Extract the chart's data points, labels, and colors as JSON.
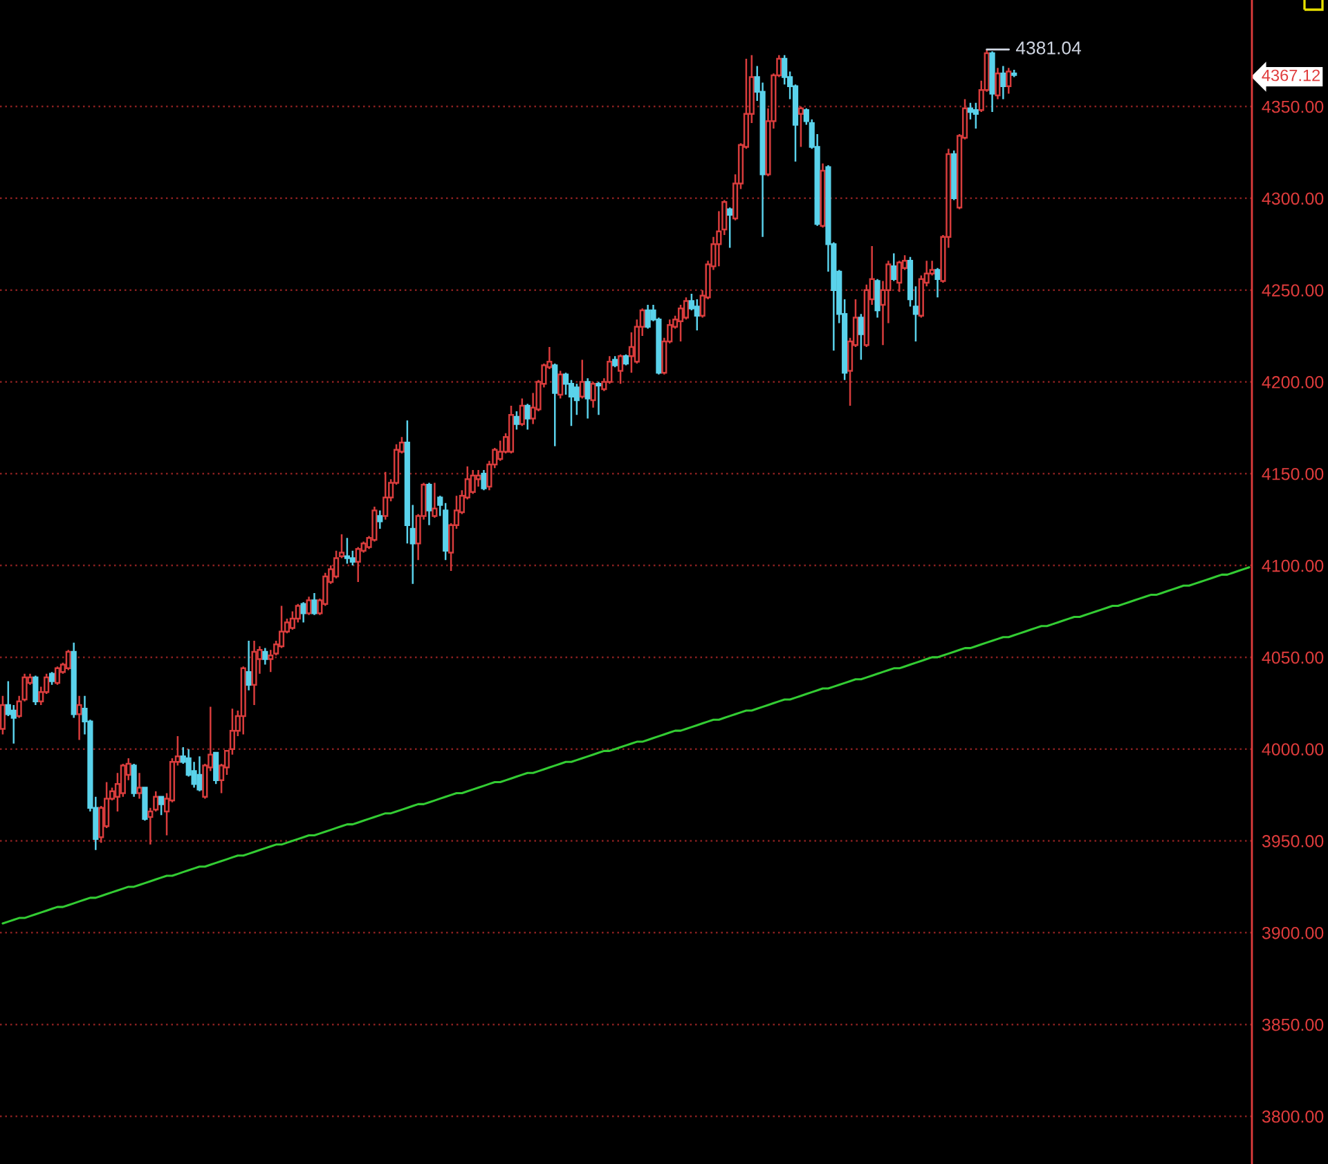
{
  "chart_data": {
    "type": "candlestick",
    "categories": [
      null,
      null,
      null,
      null,
      null,
      null,
      null,
      null,
      null,
      null,
      null,
      null,
      null,
      null,
      null,
      null,
      null,
      null,
      null,
      null,
      null,
      null,
      null,
      null,
      null,
      null,
      null,
      null,
      null,
      null,
      null,
      null,
      null,
      null,
      null,
      null,
      null,
      null,
      null,
      null,
      null,
      null,
      null,
      null,
      null,
      null,
      null,
      null,
      null,
      null,
      null,
      null,
      null,
      null,
      null,
      null,
      null,
      null,
      null,
      null,
      null,
      null,
      null,
      null,
      null,
      null,
      null,
      null,
      null,
      null,
      null,
      null,
      null,
      null,
      null,
      null,
      null,
      null,
      null,
      null,
      null,
      null,
      null,
      null,
      null,
      null,
      null,
      null,
      null,
      null,
      null,
      null,
      null,
      null,
      null,
      null,
      null,
      null,
      null,
      null,
      null,
      null,
      null,
      null,
      null,
      null,
      null,
      null,
      null,
      null,
      null,
      null,
      null,
      null,
      null,
      null,
      null,
      null,
      null,
      null,
      null,
      null,
      null,
      null,
      null,
      null,
      null,
      null,
      null,
      null,
      null,
      null,
      null,
      null,
      null,
      null,
      null,
      null,
      null,
      null,
      null,
      null,
      null,
      null,
      null,
      null,
      null,
      null,
      null,
      null,
      null,
      null,
      null,
      null,
      null,
      null,
      null,
      null,
      null,
      null,
      null,
      null,
      null,
      null,
      null,
      null,
      null,
      null,
      null,
      null,
      null,
      null,
      null,
      null,
      null,
      null,
      null,
      null,
      null,
      null,
      null,
      null,
      null,
      null,
      null,
      null,
      null,
      null,
      null,
      null,
      null,
      null,
      null,
      null,
      null,
      null,
      null,
      null,
      null,
      null,
      null,
      null,
      null,
      null,
      null,
      null,
      null,
      null,
      null,
      null,
      null,
      null,
      null,
      null,
      null,
      null,
      null,
      null,
      null,
      null,
      null,
      null,
      null,
      null,
      null,
      null,
      null,
      null,
      null
    ],
    "ohlc": [
      [
        4011,
        4029,
        4008,
        4024
      ],
      [
        4024,
        4037,
        4018,
        4019
      ],
      [
        4021,
        4024,
        4003,
        4017
      ],
      [
        4018,
        4029,
        4017,
        4026
      ],
      [
        4027,
        4041,
        4026,
        4039
      ],
      [
        4036,
        4041,
        4035,
        4039
      ],
      [
        4039,
        4040,
        4024,
        4026
      ],
      [
        4026,
        4034,
        4024,
        4031
      ],
      [
        4031,
        4041,
        4030,
        4039
      ],
      [
        4041,
        4042,
        4035,
        4037
      ],
      [
        4036,
        4045,
        4035,
        4044
      ],
      [
        4042,
        4047,
        4041,
        4046
      ],
      [
        4044,
        4054,
        4043,
        4053
      ],
      [
        4053,
        4058,
        4017,
        4019
      ],
      [
        4019,
        4029,
        4005,
        4024
      ],
      [
        4022,
        4029,
        4008,
        4015
      ],
      [
        4015,
        4016,
        3966,
        3968
      ],
      [
        3968,
        3974,
        3945,
        3951
      ],
      [
        3952,
        3969,
        3949,
        3968
      ],
      [
        3958,
        3982,
        3957,
        3973
      ],
      [
        3973,
        3979,
        3972,
        3977
      ],
      [
        3974,
        3987,
        3966,
        3981
      ],
      [
        3976,
        3992,
        3974,
        3991
      ],
      [
        3986,
        3995,
        3983,
        3992
      ],
      [
        3991,
        3992,
        3974,
        3976
      ],
      [
        3976,
        3987,
        3973,
        3979
      ],
      [
        3979,
        3979,
        3961,
        3962
      ],
      [
        3963,
        3968,
        3948,
        3966
      ],
      [
        3967,
        3977,
        3966,
        3974
      ],
      [
        3974,
        3974,
        3964,
        3970
      ],
      [
        3966,
        3976,
        3953,
        3973
      ],
      [
        3972,
        3995,
        3971,
        3993
      ],
      [
        3993,
        4007,
        3991,
        3996
      ],
      [
        3996,
        4001,
        3992,
        3993
      ],
      [
        3995,
        4000,
        3985,
        3986
      ],
      [
        3988,
        3993,
        3979,
        3981
      ],
      [
        3986,
        3996,
        3977,
        3978
      ],
      [
        3974,
        3992,
        3973,
        3991
      ],
      [
        3990,
        4023,
        3988,
        3997
      ],
      [
        3998,
        3998,
        3981,
        3983
      ],
      [
        3983,
        3992,
        3976,
        3991
      ],
      [
        3990,
        3999,
        3986,
        3999
      ],
      [
        4000,
        4022,
        3997,
        4010
      ],
      [
        4010,
        4021,
        4007,
        4018
      ],
      [
        4018,
        4045,
        4008,
        4044
      ],
      [
        4042,
        4059,
        4032,
        4035
      ],
      [
        4035,
        4059,
        4024,
        4053
      ],
      [
        4049,
        4056,
        4041,
        4054
      ],
      [
        4053,
        4055,
        4046,
        4049
      ],
      [
        4049,
        4054,
        4042,
        4051
      ],
      [
        4052,
        4059,
        4051,
        4057
      ],
      [
        4056,
        4078,
        4055,
        4064
      ],
      [
        4064,
        4071,
        4063,
        4069
      ],
      [
        4066,
        4075,
        4065,
        4071
      ],
      [
        4071,
        4079,
        4069,
        4078
      ],
      [
        4079,
        4080,
        4069,
        4074
      ],
      [
        4074,
        4083,
        4073,
        4081
      ],
      [
        4081,
        4085,
        4073,
        4074
      ],
      [
        4074,
        4082,
        4073,
        4081
      ],
      [
        4079,
        4096,
        4078,
        4094
      ],
      [
        4091,
        4100,
        4090,
        4098
      ],
      [
        4094,
        4108,
        4093,
        4104
      ],
      [
        4105,
        4117,
        4104,
        4107
      ],
      [
        4105,
        4115,
        4101,
        4104
      ],
      [
        4104,
        4108,
        4100,
        4102
      ],
      [
        4102,
        4110,
        4091,
        4109
      ],
      [
        4108,
        4113,
        4107,
        4112
      ],
      [
        4110,
        4116,
        4109,
        4115
      ],
      [
        4114,
        4132,
        4113,
        4130
      ],
      [
        4127,
        4130,
        4120,
        4124
      ],
      [
        4127,
        4151,
        4125,
        4137
      ],
      [
        4137,
        4147,
        4135,
        4145
      ],
      [
        4145,
        4166,
        4144,
        4163
      ],
      [
        4162,
        4170,
        4161,
        4167
      ],
      [
        4167,
        4179,
        4112,
        4122
      ],
      [
        4120,
        4133,
        4090,
        4112
      ],
      [
        4112,
        4128,
        4103,
        4127
      ],
      [
        4127,
        4145,
        4125,
        4144
      ],
      [
        4144,
        4145,
        4122,
        4130
      ],
      [
        4127,
        4145,
        4126,
        4131
      ],
      [
        4137,
        4138,
        4127,
        4133
      ],
      [
        4130,
        4134,
        4103,
        4108
      ],
      [
        4107,
        4123,
        4097,
        4122
      ],
      [
        4122,
        4138,
        4120,
        4130
      ],
      [
        4129,
        4141,
        4128,
        4138
      ],
      [
        4137,
        4154,
        4136,
        4147
      ],
      [
        4140,
        4152,
        4139,
        4149
      ],
      [
        4147,
        4152,
        4143,
        4149
      ],
      [
        4150,
        4152,
        4141,
        4142
      ],
      [
        4143,
        4157,
        4141,
        4155
      ],
      [
        4155,
        4164,
        4153,
        4163
      ],
      [
        4158,
        4168,
        4157,
        4162
      ],
      [
        4162,
        4172,
        4161,
        4170
      ],
      [
        4162,
        4187,
        4161,
        4182
      ],
      [
        4181,
        4184,
        4174,
        4177
      ],
      [
        4177,
        4191,
        4176,
        4187
      ],
      [
        4187,
        4188,
        4174,
        4180
      ],
      [
        4180,
        4194,
        4177,
        4186
      ],
      [
        4185,
        4201,
        4184,
        4200
      ],
      [
        4199,
        4210,
        4197,
        4209
      ],
      [
        4208,
        4219,
        4207,
        4211
      ],
      [
        4209,
        4210,
        4165,
        4194
      ],
      [
        4193,
        4206,
        4191,
        4204
      ],
      [
        4204,
        4205,
        4193,
        4199
      ],
      [
        4199,
        4201,
        4176,
        4192
      ],
      [
        4197,
        4199,
        4182,
        4190
      ],
      [
        4192,
        4212,
        4191,
        4200
      ],
      [
        4200,
        4202,
        4180,
        4191
      ],
      [
        4190,
        4200,
        4186,
        4199
      ],
      [
        4199,
        4200,
        4182,
        4198
      ],
      [
        4196,
        4202,
        4195,
        4200
      ],
      [
        4200,
        4214,
        4199,
        4211
      ],
      [
        4212,
        4214,
        4208,
        4209
      ],
      [
        4206,
        4215,
        4199,
        4214
      ],
      [
        4214,
        4215,
        4209,
        4210
      ],
      [
        4214,
        4227,
        4205,
        4219
      ],
      [
        4211,
        4234,
        4210,
        4230
      ],
      [
        4230,
        4240,
        4225,
        4239
      ],
      [
        4239,
        4242,
        4229,
        4230
      ],
      [
        4239,
        4242,
        4233,
        4234
      ],
      [
        4234,
        4235,
        4204,
        4205
      ],
      [
        4205,
        4224,
        4204,
        4222
      ],
      [
        4222,
        4234,
        4221,
        4231
      ],
      [
        4230,
        4236,
        4229,
        4234
      ],
      [
        4233,
        4242,
        4222,
        4240
      ],
      [
        4235,
        4246,
        4234,
        4244
      ],
      [
        4244,
        4248,
        4239,
        4240
      ],
      [
        4241,
        4245,
        4228,
        4236
      ],
      [
        4236,
        4250,
        4235,
        4247
      ],
      [
        4246,
        4266,
        4245,
        4264
      ],
      [
        4263,
        4279,
        4261,
        4275
      ],
      [
        4275,
        4293,
        4263,
        4282
      ],
      [
        4283,
        4299,
        4280,
        4298
      ],
      [
        4294,
        4295,
        4273,
        4291
      ],
      [
        4289,
        4313,
        4288,
        4308
      ],
      [
        4308,
        4330,
        4305,
        4329
      ],
      [
        4328,
        4376,
        4327,
        4346
      ],
      [
        4346,
        4378,
        4341,
        4366
      ],
      [
        4366,
        4372,
        4353,
        4358
      ],
      [
        4358,
        4363,
        4279,
        4313
      ],
      [
        4313,
        4349,
        4312,
        4342
      ],
      [
        4342,
        4368,
        4338,
        4367
      ],
      [
        4367,
        4378,
        4366,
        4376
      ],
      [
        4376,
        4378,
        4362,
        4366
      ],
      [
        4366,
        4369,
        4354,
        4361
      ],
      [
        4361,
        4362,
        4320,
        4340
      ],
      [
        4346,
        4350,
        4328,
        4349
      ],
      [
        4348,
        4349,
        4340,
        4342
      ],
      [
        4341,
        4343,
        4327,
        4328
      ],
      [
        4328,
        4335,
        4285,
        4286
      ],
      [
        4285,
        4319,
        4284,
        4315
      ],
      [
        4317,
        4318,
        4260,
        4275
      ],
      [
        4275,
        4276,
        4217,
        4250
      ],
      [
        4260,
        4261,
        4232,
        4237
      ],
      [
        4237,
        4245,
        4201,
        4205
      ],
      [
        4206,
        4224,
        4187,
        4222
      ],
      [
        4220,
        4245,
        4219,
        4235
      ],
      [
        4235,
        4237,
        4212,
        4226
      ],
      [
        4220,
        4253,
        4219,
        4250
      ],
      [
        4245,
        4274,
        4242,
        4256
      ],
      [
        4255,
        4256,
        4235,
        4239
      ],
      [
        4242,
        4255,
        4220,
        4250
      ],
      [
        4250,
        4266,
        4232,
        4264
      ],
      [
        4263,
        4270,
        4255,
        4256
      ],
      [
        4254,
        4266,
        4249,
        4265
      ],
      [
        4262,
        4269,
        4261,
        4266
      ],
      [
        4266,
        4268,
        4241,
        4245
      ],
      [
        4241,
        4252,
        4222,
        4237
      ],
      [
        4236,
        4258,
        4235,
        4256
      ],
      [
        4254,
        4266,
        4252,
        4259
      ],
      [
        4259,
        4266,
        4258,
        4261
      ],
      [
        4261,
        4262,
        4246,
        4256
      ],
      [
        4255,
        4280,
        4254,
        4279
      ],
      [
        4279,
        4327,
        4273,
        4324
      ],
      [
        4324,
        4326,
        4299,
        4300
      ],
      [
        4295,
        4335,
        4294,
        4334
      ],
      [
        4333,
        4354,
        4332,
        4349
      ],
      [
        4349,
        4352,
        4343,
        4347
      ],
      [
        4348,
        4352,
        4338,
        4346
      ],
      [
        4348,
        4364,
        4347,
        4359
      ],
      [
        4359,
        4381.04,
        4358,
        4379
      ],
      [
        4379,
        4380,
        4347,
        4357
      ],
      [
        4356,
        4371,
        4354,
        4368
      ],
      [
        4368,
        4372,
        4354,
        4361
      ],
      [
        4361,
        4371,
        4357,
        4369
      ],
      [
        4368,
        4370,
        4366,
        4367.12
      ],
      null,
      null,
      null,
      null,
      null,
      null,
      null,
      null,
      null,
      null,
      null,
      null,
      null,
      null,
      null,
      null,
      null,
      null,
      null,
      null,
      null,
      null,
      null,
      null,
      null,
      null,
      null,
      null,
      null,
      null,
      null,
      null,
      null,
      null,
      null,
      null,
      null,
      null,
      null,
      null,
      null,
      null,
      null
    ],
    "colors": [
      "#d83c3c",
      "#5ad2eb",
      "#5ad2eb",
      "#d83c3c",
      "#d83c3c",
      "#d83c3c",
      "#5ad2eb",
      "#d83c3c",
      "#d83c3c",
      "#5ad2eb",
      "#d83c3c",
      "#d83c3c",
      "#d83c3c",
      "#5ad2eb",
      "#d83c3c",
      "#5ad2eb",
      "#5ad2eb",
      "#5ad2eb",
      "#d83c3c",
      "#d83c3c",
      "#d83c3c",
      "#d83c3c",
      "#d83c3c",
      "#d83c3c",
      "#5ad2eb",
      "#d83c3c",
      "#5ad2eb",
      "#d83c3c",
      "#d83c3c",
      "#5ad2eb",
      "#d83c3c",
      "#d83c3c",
      "#d83c3c",
      "#5ad2eb",
      "#5ad2eb",
      "#5ad2eb",
      "#5ad2eb",
      "#d83c3c",
      "#d83c3c",
      "#5ad2eb",
      "#d83c3c",
      "#d83c3c",
      "#d83c3c",
      "#d83c3c",
      "#d83c3c",
      "#5ad2eb",
      "#d83c3c",
      "#d83c3c",
      "#5ad2eb",
      "#d83c3c",
      "#d83c3c",
      "#d83c3c",
      "#d83c3c",
      "#d83c3c",
      "#d83c3c",
      "#5ad2eb",
      "#d83c3c",
      "#5ad2eb",
      "#d83c3c",
      "#d83c3c",
      "#d83c3c",
      "#d83c3c",
      "#d83c3c",
      "#5ad2eb",
      "#5ad2eb",
      "#d83c3c",
      "#d83c3c",
      "#d83c3c",
      "#d83c3c",
      "#5ad2eb",
      "#d83c3c",
      "#d83c3c",
      "#d83c3c",
      "#d83c3c",
      "#5ad2eb",
      "#5ad2eb",
      "#d83c3c",
      "#d83c3c",
      "#5ad2eb",
      "#d83c3c",
      "#5ad2eb",
      "#5ad2eb",
      "#d83c3c",
      "#d83c3c",
      "#d83c3c",
      "#d83c3c",
      "#d83c3c",
      "#d83c3c",
      "#5ad2eb",
      "#d83c3c",
      "#d83c3c",
      "#d83c3c",
      "#d83c3c",
      "#d83c3c",
      "#5ad2eb",
      "#d83c3c",
      "#5ad2eb",
      "#d83c3c",
      "#d83c3c",
      "#d83c3c",
      "#d83c3c",
      "#5ad2eb",
      "#d83c3c",
      "#5ad2eb",
      "#5ad2eb",
      "#5ad2eb",
      "#d83c3c",
      "#5ad2eb",
      "#d83c3c",
      "#5ad2eb",
      "#d83c3c",
      "#d83c3c",
      "#5ad2eb",
      "#d83c3c",
      "#5ad2eb",
      "#d83c3c",
      "#d83c3c",
      "#d83c3c",
      "#5ad2eb",
      "#5ad2eb",
      "#5ad2eb",
      "#d83c3c",
      "#d83c3c",
      "#d83c3c",
      "#d83c3c",
      "#d83c3c",
      "#5ad2eb",
      "#5ad2eb",
      "#d83c3c",
      "#d83c3c",
      "#d83c3c",
      "#d83c3c",
      "#d83c3c",
      "#5ad2eb",
      "#d83c3c",
      "#d83c3c",
      "#d83c3c",
      "#d83c3c",
      "#5ad2eb",
      "#5ad2eb",
      "#d83c3c",
      "#d83c3c",
      "#d83c3c",
      "#5ad2eb",
      "#5ad2eb",
      "#5ad2eb",
      "#d83c3c",
      "#5ad2eb",
      "#5ad2eb",
      "#5ad2eb",
      "#d83c3c",
      "#5ad2eb",
      "#5ad2eb",
      "#5ad2eb",
      "#5ad2eb",
      "#d83c3c",
      "#d83c3c",
      "#5ad2eb",
      "#d83c3c",
      "#d83c3c",
      "#5ad2eb",
      "#d83c3c",
      "#d83c3c",
      "#5ad2eb",
      "#d83c3c",
      "#d83c3c",
      "#5ad2eb",
      "#5ad2eb",
      "#d83c3c",
      "#d83c3c",
      "#d83c3c",
      "#5ad2eb",
      "#d83c3c",
      "#d83c3c",
      "#5ad2eb",
      "#d83c3c",
      "#d83c3c",
      "#5ad2eb",
      "#5ad2eb",
      "#d83c3c",
      "#d83c3c",
      "#5ad2eb",
      "#d83c3c",
      "#5ad2eb",
      "#d83c3c",
      "#5ad2eb",
      null,
      null,
      null,
      null,
      null,
      null,
      null,
      null,
      null,
      null,
      null,
      null,
      null,
      null,
      null,
      null,
      null,
      null,
      null,
      null,
      null,
      null,
      null,
      null,
      null,
      null,
      null,
      null,
      null,
      null,
      null,
      null,
      null,
      null,
      null,
      null,
      null,
      null,
      null,
      null,
      null,
      null,
      null
    ],
    "series": [
      {
        "type": "line",
        "color": "#33cc33",
        "values": [
          3905,
          3906,
          3907,
          3908,
          3908,
          3909,
          3910,
          3911,
          3912,
          3913,
          3914,
          3914,
          3915,
          3916,
          3917,
          3918,
          3919,
          3919,
          3920,
          3921,
          3922,
          3923,
          3924,
          3925,
          3925,
          3926,
          3927,
          3928,
          3929,
          3930,
          3931,
          3931,
          3932,
          3933,
          3934,
          3935,
          3936,
          3936,
          3937,
          3938,
          3939,
          3940,
          3941,
          3942,
          3942,
          3943,
          3944,
          3945,
          3946,
          3947,
          3948,
          3948,
          3949,
          3950,
          3951,
          3952,
          3953,
          3953,
          3954,
          3955,
          3956,
          3957,
          3958,
          3959,
          3959,
          3960,
          3961,
          3962,
          3963,
          3964,
          3965,
          3965,
          3966,
          3967,
          3968,
          3969,
          3970,
          3970,
          3971,
          3972,
          3973,
          3974,
          3975,
          3976,
          3976,
          3977,
          3978,
          3979,
          3980,
          3981,
          3982,
          3982,
          3983,
          3984,
          3985,
          3986,
          3987,
          3987,
          3988,
          3989,
          3990,
          3991,
          3992,
          3993,
          3993,
          3994,
          3995,
          3996,
          3997,
          3998,
          3999,
          3999,
          4000,
          4001,
          4002,
          4003,
          4004,
          4004,
          4005,
          4006,
          4007,
          4008,
          4009,
          4010,
          4010,
          4011,
          4012,
          4013,
          4014,
          4015,
          4016,
          4016,
          4017,
          4018,
          4019,
          4020,
          4021,
          4021,
          4022,
          4023,
          4024,
          4025,
          4026,
          4027,
          4027,
          4028,
          4029,
          4030,
          4031,
          4032,
          4033,
          4033,
          4034,
          4035,
          4036,
          4037,
          4038,
          4038,
          4039,
          4040,
          4041,
          4042,
          4043,
          4044,
          4044,
          4045,
          4046,
          4047,
          4048,
          4049,
          4050,
          4050,
          4051,
          4052,
          4053,
          4054,
          4055,
          4055,
          4056,
          4057,
          4058,
          4059,
          4060,
          4061,
          4061,
          4062,
          4063,
          4064,
          4065,
          4066,
          4067,
          4067,
          4068,
          4069,
          4070,
          4071,
          4072,
          4072,
          4073,
          4074,
          4075,
          4076,
          4077,
          4078,
          4078,
          4079,
          4080,
          4081,
          4082,
          4083,
          4084,
          4084,
          4085,
          4086,
          4087,
          4088,
          4089,
          4089,
          4090,
          4091,
          4092,
          4093,
          4094,
          4095,
          4095,
          4096,
          4097,
          4098,
          4099
        ]
      }
    ],
    "ylim": [
      3774,
      4408
    ],
    "yticks": [
      {
        "value": 3800,
        "label": "3800.00"
      },
      {
        "value": 3850,
        "label": "3850.00"
      },
      {
        "value": 3900,
        "label": "3900.00"
      },
      {
        "value": 3950,
        "label": "3950.00"
      },
      {
        "value": 4000,
        "label": "4000.00"
      },
      {
        "value": 4050,
        "label": "4050.00"
      },
      {
        "value": 4100,
        "label": "4100.00"
      },
      {
        "value": 4150,
        "label": "4150.00"
      },
      {
        "value": 4200,
        "label": "4200.00"
      },
      {
        "value": 4250,
        "label": "4250.00"
      },
      {
        "value": 4300,
        "label": "4300.00"
      },
      {
        "value": 4350,
        "label": "4350.00"
      },
      {
        "value": 4367.12,
        "label": "4367.12"
      }
    ],
    "grid": "y",
    "tick_labels": "y",
    "annotations": [
      "4381.04"
    ]
  }
}
